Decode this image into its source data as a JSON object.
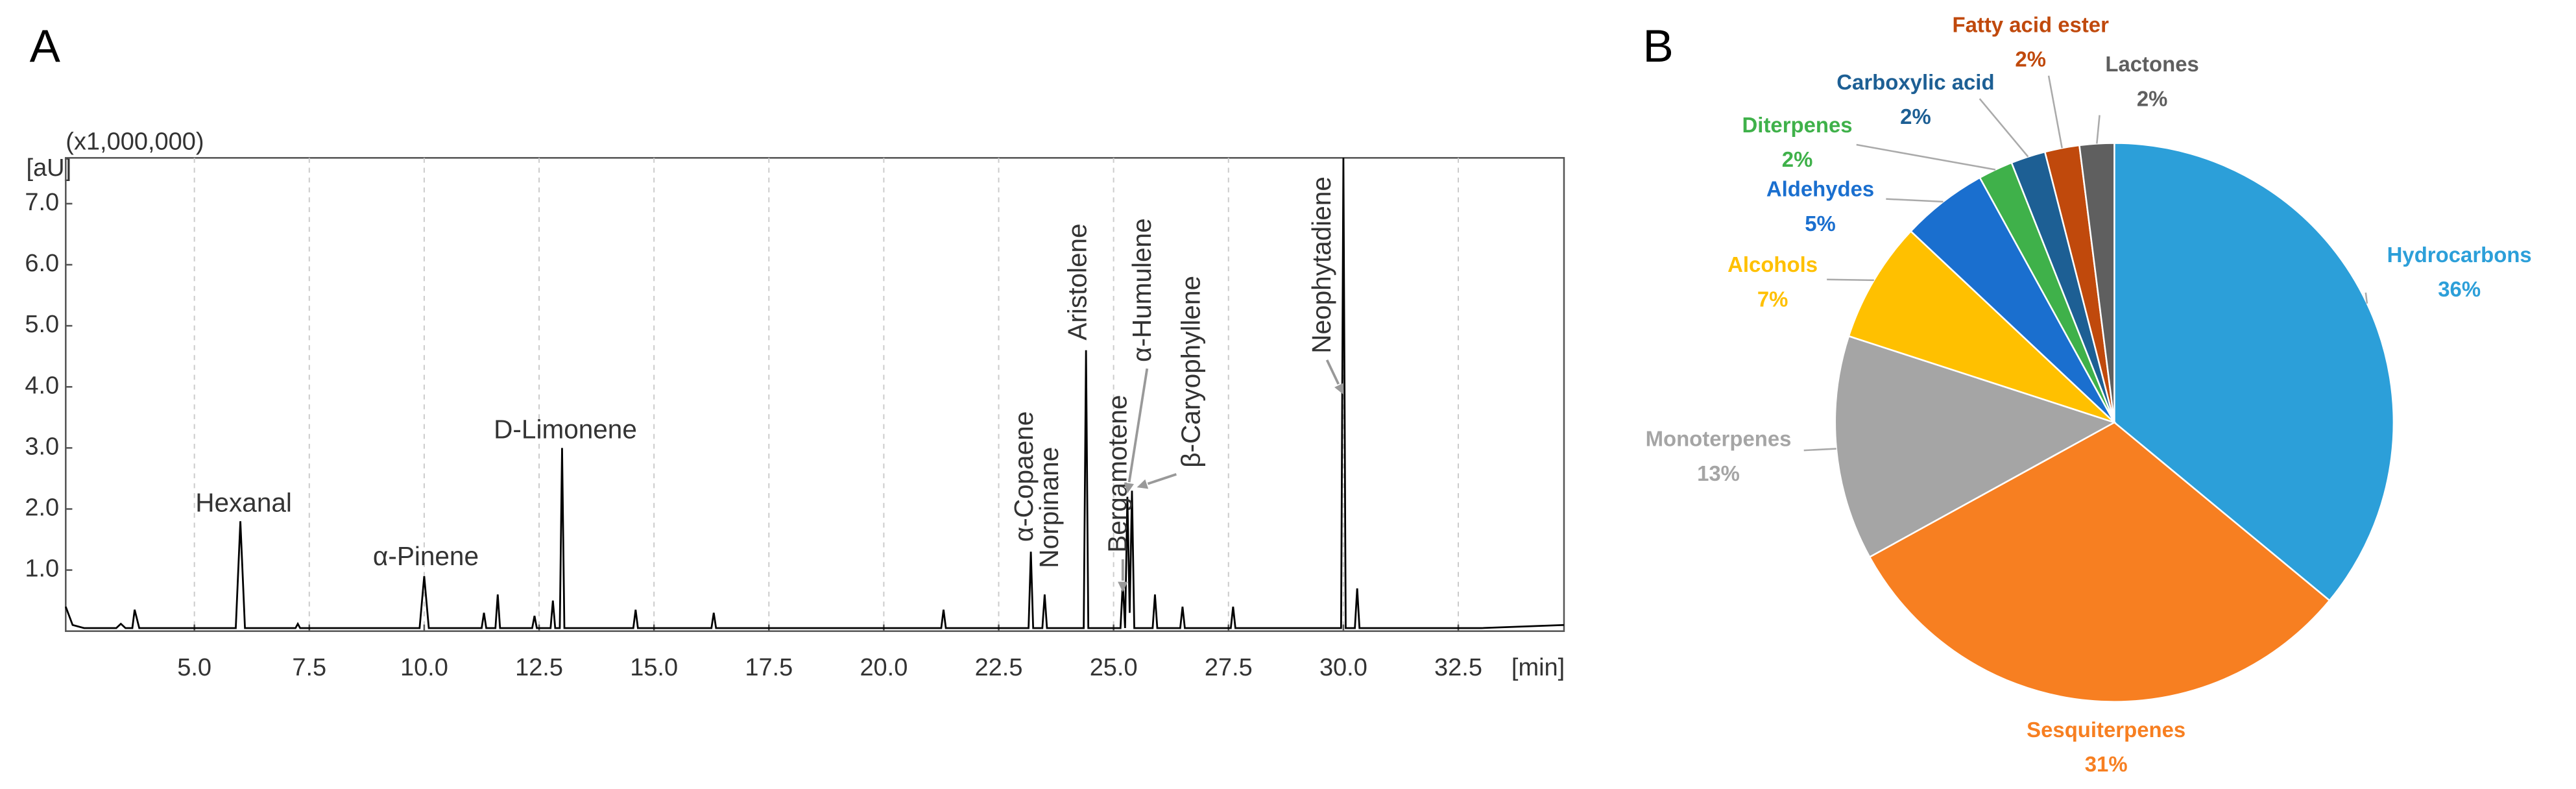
{
  "chart_data": [
    {
      "type": "line",
      "panel": "A",
      "y_multiplier": "(x1,000,000)",
      "y_label": "[aU]",
      "x_label": "[min]",
      "color": "#000000",
      "grid": true,
      "xlim": [
        2.2,
        34.8
      ],
      "ylim": [
        0,
        7.75
      ],
      "xticks": [
        {
          "value": 5,
          "label": "5.0"
        },
        {
          "value": 7.5,
          "label": "7.5"
        },
        {
          "value": 10,
          "label": "10.0"
        },
        {
          "value": 12.5,
          "label": "12.5"
        },
        {
          "value": 15,
          "label": "15.0"
        },
        {
          "value": 17.5,
          "label": "17.5"
        },
        {
          "value": 20,
          "label": "20.0"
        },
        {
          "value": 22.5,
          "label": "22.5"
        },
        {
          "value": 25,
          "label": "25.0"
        },
        {
          "value": 27.5,
          "label": "27.5"
        },
        {
          "value": 30,
          "label": "30.0"
        },
        {
          "value": 32.5,
          "label": "32.5"
        }
      ],
      "yticks": [
        {
          "value": 1,
          "label": "1.0"
        },
        {
          "value": 2,
          "label": "2.0"
        },
        {
          "value": 3,
          "label": "3.0"
        },
        {
          "value": 4,
          "label": "4.0"
        },
        {
          "value": 5,
          "label": "5.0"
        },
        {
          "value": 6,
          "label": "6.0"
        },
        {
          "value": 7,
          "label": "7.0"
        }
      ],
      "x": [
        2.2,
        2.35,
        2.6,
        3.3,
        3.4,
        3.5,
        3.65,
        3.7,
        3.8,
        5.9,
        6.0,
        6.1,
        7.2,
        7.25,
        7.3,
        9.9,
        10.0,
        10.1,
        11.25,
        11.3,
        11.35,
        11.55,
        11.6,
        11.65,
        12.35,
        12.4,
        12.45,
        12.75,
        12.8,
        12.85,
        12.95,
        13.0,
        13.05,
        14.55,
        14.6,
        14.65,
        16.25,
        16.3,
        16.35,
        21.25,
        21.3,
        21.35,
        23.15,
        23.2,
        23.25,
        23.45,
        23.5,
        23.55,
        24.35,
        24.4,
        24.45,
        25.15,
        25.2,
        25.25,
        25.3,
        25.35,
        25.4,
        25.45,
        25.85,
        25.9,
        25.95,
        26.45,
        26.5,
        26.55,
        27.55,
        27.6,
        27.65,
        29.95,
        30.0,
        30.05,
        30.25,
        30.3,
        30.35,
        33.0,
        34.8
      ],
      "values": [
        0.4,
        0.1,
        0.05,
        0.05,
        0.12,
        0.05,
        0.05,
        0.35,
        0.05,
        0.05,
        1.8,
        0.05,
        0.05,
        0.12,
        0.05,
        0.05,
        0.9,
        0.05,
        0.05,
        0.3,
        0.05,
        0.05,
        0.6,
        0.05,
        0.05,
        0.25,
        0.05,
        0.05,
        0.5,
        0.05,
        0.05,
        3.0,
        0.05,
        0.05,
        0.35,
        0.05,
        0.05,
        0.3,
        0.05,
        0.05,
        0.35,
        0.05,
        0.05,
        1.3,
        0.05,
        0.05,
        0.6,
        0.05,
        0.05,
        4.6,
        0.05,
        0.05,
        0.8,
        0.05,
        2.2,
        0.3,
        2.3,
        0.05,
        0.05,
        0.6,
        0.05,
        0.05,
        0.4,
        0.05,
        0.05,
        0.4,
        0.05,
        0.05,
        7.75,
        0.05,
        0.05,
        0.7,
        0.05,
        0.05,
        0.1
      ],
      "annotations": [
        {
          "text": "Hexanal",
          "x": 6.0,
          "y": 1.8
        },
        {
          "text": "α-Pinene",
          "x": 10.0,
          "y": 0.9
        },
        {
          "text": "D-Limonene",
          "x": 13.0,
          "y": 3.0
        },
        {
          "text": "α-Copaene",
          "x": 23.2,
          "y": 1.3
        },
        {
          "text": "Norpinane",
          "x": 23.5,
          "y": 0.6
        },
        {
          "text": "Aristolene",
          "x": 24.4,
          "y": 4.6
        },
        {
          "text": "Bergamotene",
          "x": 25.2,
          "y": 0.8
        },
        {
          "text": "α-Humulene",
          "x": 25.3,
          "y": 2.2
        },
        {
          "text": "β-Caryophyllene",
          "x": 25.4,
          "y": 2.3
        },
        {
          "text": "Neophytadiene",
          "x": 30.0,
          "y": 7.75
        }
      ]
    },
    {
      "type": "pie",
      "panel": "B",
      "categories": [
        "Hydrocarbons",
        "Sesquiterpenes",
        "Monoterpenes",
        "Alcohols",
        "Aldehydes",
        "Diterpenes",
        "Carboxylic acid",
        "Fatty acid ester",
        "Lactones"
      ],
      "values": [
        36,
        31,
        13,
        7,
        5,
        2,
        2,
        2,
        2
      ],
      "value_labels": [
        "36%",
        "31%",
        "13%",
        "7%",
        "5%",
        "2%",
        "2%",
        "2%",
        "2%"
      ],
      "colors": [
        "#2c9fd9",
        "#f77f21",
        "#a5a5a5",
        "#ffc000",
        "#1a6fcf",
        "#3fb14a",
        "#1d5f94",
        "#c0490c",
        "#5f5f5f"
      ]
    }
  ]
}
